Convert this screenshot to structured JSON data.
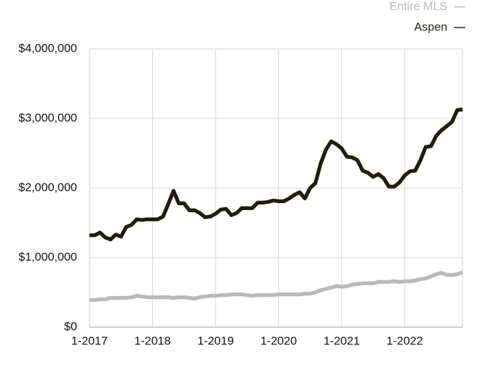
{
  "chart_data": {
    "type": "line",
    "categories": [
      "1-2017",
      null,
      null,
      null,
      null,
      null,
      null,
      null,
      null,
      null,
      null,
      null,
      "1-2018",
      null,
      null,
      null,
      null,
      null,
      null,
      null,
      null,
      null,
      null,
      null,
      "1-2019",
      null,
      null,
      null,
      null,
      null,
      null,
      null,
      null,
      null,
      null,
      null,
      "1-2020",
      null,
      null,
      null,
      null,
      null,
      null,
      null,
      null,
      null,
      null,
      null,
      "1-2021",
      null,
      null,
      null,
      null,
      null,
      null,
      null,
      null,
      null,
      null,
      null,
      "1-2022",
      null,
      null,
      null,
      null,
      null,
      null,
      null,
      null,
      null,
      null,
      null
    ],
    "series": [
      {
        "name": "Entire MLS",
        "color": "#b9b9b9",
        "values": [
          390000,
          390000,
          400000,
          400000,
          420000,
          420000,
          420000,
          420000,
          430000,
          450000,
          440000,
          430000,
          430000,
          430000,
          430000,
          430000,
          420000,
          430000,
          430000,
          420000,
          410000,
          430000,
          440000,
          450000,
          450000,
          460000,
          460000,
          470000,
          470000,
          470000,
          460000,
          450000,
          460000,
          460000,
          460000,
          460000,
          470000,
          470000,
          470000,
          470000,
          470000,
          480000,
          480000,
          500000,
          530000,
          550000,
          570000,
          590000,
          580000,
          590000,
          610000,
          620000,
          630000,
          630000,
          630000,
          650000,
          650000,
          650000,
          660000,
          650000,
          660000,
          660000,
          670000,
          690000,
          700000,
          730000,
          760000,
          780000,
          750000,
          750000,
          760000,
          790000
        ]
      },
      {
        "name": "Aspen",
        "color": "#221e0f",
        "values": [
          1320000,
          1320000,
          1360000,
          1290000,
          1260000,
          1330000,
          1300000,
          1440000,
          1470000,
          1550000,
          1540000,
          1550000,
          1550000,
          1550000,
          1590000,
          1770000,
          1960000,
          1780000,
          1780000,
          1680000,
          1680000,
          1640000,
          1580000,
          1590000,
          1630000,
          1690000,
          1700000,
          1610000,
          1640000,
          1710000,
          1710000,
          1710000,
          1790000,
          1790000,
          1800000,
          1820000,
          1810000,
          1810000,
          1850000,
          1900000,
          1940000,
          1850000,
          2000000,
          2070000,
          2350000,
          2550000,
          2670000,
          2630000,
          2570000,
          2450000,
          2440000,
          2400000,
          2250000,
          2220000,
          2160000,
          2200000,
          2140000,
          2020000,
          2020000,
          2080000,
          2180000,
          2240000,
          2250000,
          2400000,
          2590000,
          2600000,
          2750000,
          2830000,
          2890000,
          2950000,
          3120000,
          3130000
        ]
      }
    ],
    "ylim": [
      0,
      4000000
    ],
    "yticks": [
      {
        "value": 0,
        "label": "$0"
      },
      {
        "value": 1000000,
        "label": "$1,000,000"
      },
      {
        "value": 2000000,
        "label": "$2,000,000"
      },
      {
        "value": 3000000,
        "label": "$3,000,000"
      },
      {
        "value": 4000000,
        "label": "$4,000,000"
      }
    ],
    "grid": true,
    "legend": "top-right"
  }
}
